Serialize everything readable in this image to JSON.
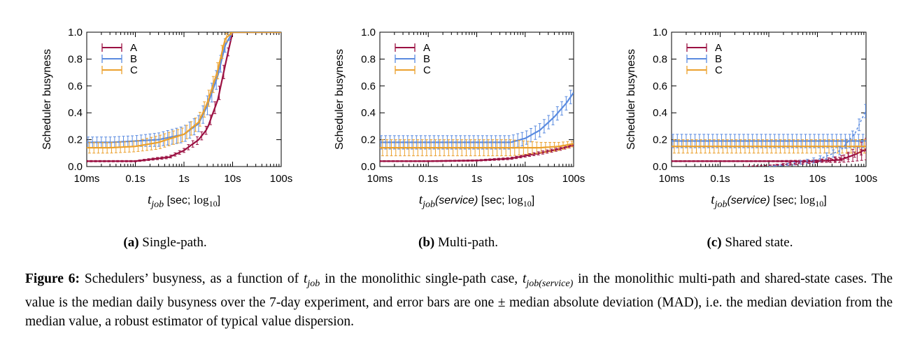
{
  "figure": {
    "label": "Figure 6:",
    "caption_parts": [
      "Schedulers’ busyness, as a function of ",
      "t",
      "job",
      " in the monolithic single-path case, ",
      "t",
      "job(service)",
      " in the monolithic multi-path and shared-state cases. The value is the median daily busyness over the 7-day experiment, and error bars are one ± median absolute deviation (MAD), i.e. the median deviation from the median value, a robust estimator of typical value dispersion."
    ]
  },
  "subcaptions": [
    {
      "tag": "(a)",
      "text": "Single-path."
    },
    {
      "tag": "(b)",
      "text": "Multi-path."
    },
    {
      "tag": "(c)",
      "text": "Shared state."
    }
  ],
  "colors": {
    "A": "#9b1042",
    "B": "#5a8be0",
    "C": "#eba12e"
  },
  "chart_data": [
    {
      "type": "line",
      "ylabel": "Scheduler busyness",
      "xlabel_parts": {
        "t": "t",
        "sub": "job",
        "suffix": "",
        "unit": " [sec; ",
        "log": "log",
        "logsub": "10",
        "close": "]"
      },
      "x_scale": "log",
      "xlim": [
        0.01,
        100
      ],
      "ylim": [
        0,
        1
      ],
      "x_ticks": [
        {
          "v": 0.01,
          "label": "10ms"
        },
        {
          "v": 0.1,
          "label": "0.1s"
        },
        {
          "v": 1,
          "label": "1s"
        },
        {
          "v": 10,
          "label": "10s"
        },
        {
          "v": 100,
          "label": "100s"
        }
      ],
      "y_ticks": [
        {
          "v": 0,
          "label": "0.0"
        },
        {
          "v": 0.2,
          "label": "0.2"
        },
        {
          "v": 0.4,
          "label": "0.4"
        },
        {
          "v": 0.6,
          "label": "0.6"
        },
        {
          "v": 0.8,
          "label": "0.8"
        },
        {
          "v": 1,
          "label": "1.0"
        }
      ],
      "legend": "top-left",
      "series": [
        {
          "name": "A",
          "x": [
            0.01,
            0.1,
            0.5,
            1,
            2,
            3,
            5,
            7,
            10,
            20,
            100
          ],
          "y": [
            0.04,
            0.04,
            0.07,
            0.12,
            0.2,
            0.28,
            0.5,
            0.75,
            1.0,
            1.0,
            1.0
          ],
          "err": [
            0.005,
            0.005,
            0.01,
            0.015,
            0.03,
            0.03,
            0.05,
            0.05,
            0.0,
            0.0,
            0.0
          ]
        },
        {
          "name": "B",
          "x": [
            0.01,
            0.03,
            0.1,
            0.3,
            1,
            2,
            3,
            5,
            7,
            10,
            100
          ],
          "y": [
            0.18,
            0.18,
            0.19,
            0.2,
            0.24,
            0.32,
            0.45,
            0.68,
            0.9,
            1.0,
            1.0
          ],
          "err": [
            0.04,
            0.04,
            0.04,
            0.05,
            0.06,
            0.06,
            0.07,
            0.07,
            0.05,
            0.0,
            0.0
          ]
        },
        {
          "name": "C",
          "x": [
            0.01,
            0.03,
            0.1,
            0.3,
            1,
            2,
            3,
            5,
            7,
            10,
            100
          ],
          "y": [
            0.14,
            0.14,
            0.15,
            0.18,
            0.24,
            0.33,
            0.47,
            0.72,
            0.95,
            1.0,
            1.0
          ],
          "err": [
            0.04,
            0.04,
            0.04,
            0.05,
            0.05,
            0.05,
            0.06,
            0.06,
            0.04,
            0.0,
            0.0
          ]
        }
      ]
    },
    {
      "type": "line",
      "ylabel": "Scheduler busyness",
      "xlabel_parts": {
        "t": "t",
        "sub": "job",
        "suffix": "(service)",
        "unit": " [sec; ",
        "log": "log",
        "logsub": "10",
        "close": "]"
      },
      "x_scale": "log",
      "xlim": [
        0.01,
        100
      ],
      "ylim": [
        0,
        1
      ],
      "x_ticks": [
        {
          "v": 0.01,
          "label": "10ms"
        },
        {
          "v": 0.1,
          "label": "0.1s"
        },
        {
          "v": 1,
          "label": "1s"
        },
        {
          "v": 10,
          "label": "10s"
        },
        {
          "v": 100,
          "label": "100s"
        }
      ],
      "y_ticks": [
        {
          "v": 0,
          "label": "0.0"
        },
        {
          "v": 0.2,
          "label": "0.2"
        },
        {
          "v": 0.4,
          "label": "0.4"
        },
        {
          "v": 0.6,
          "label": "0.6"
        },
        {
          "v": 0.8,
          "label": "0.8"
        },
        {
          "v": 1,
          "label": "1.0"
        }
      ],
      "legend": "top-left",
      "series": [
        {
          "name": "A",
          "x": [
            0.01,
            0.1,
            1,
            5,
            10,
            20,
            50,
            100
          ],
          "y": [
            0.04,
            0.04,
            0.045,
            0.06,
            0.08,
            0.1,
            0.13,
            0.16
          ],
          "err": [
            0.004,
            0.004,
            0.005,
            0.008,
            0.01,
            0.012,
            0.012,
            0.012
          ]
        },
        {
          "name": "B",
          "x": [
            0.01,
            0.1,
            1,
            5,
            10,
            20,
            40,
            70,
            100
          ],
          "y": [
            0.18,
            0.18,
            0.18,
            0.18,
            0.21,
            0.27,
            0.37,
            0.47,
            0.55
          ],
          "err": [
            0.05,
            0.05,
            0.05,
            0.05,
            0.05,
            0.05,
            0.05,
            0.05,
            0.05
          ]
        },
        {
          "name": "C",
          "x": [
            0.01,
            0.1,
            1,
            5,
            10,
            20,
            50,
            100
          ],
          "y": [
            0.14,
            0.14,
            0.14,
            0.14,
            0.14,
            0.14,
            0.15,
            0.17
          ],
          "err": [
            0.06,
            0.06,
            0.06,
            0.06,
            0.05,
            0.04,
            0.03,
            0.02
          ]
        }
      ]
    },
    {
      "type": "line",
      "ylabel": "Scheduler busyness",
      "xlabel_parts": {
        "t": "t",
        "sub": "job",
        "suffix": "(service)",
        "unit": " [sec; ",
        "log": "log",
        "logsub": "10",
        "close": "]"
      },
      "x_scale": "log",
      "xlim": [
        0.01,
        100
      ],
      "ylim": [
        0,
        1
      ],
      "x_ticks": [
        {
          "v": 0.01,
          "label": "10ms"
        },
        {
          "v": 0.1,
          "label": "0.1s"
        },
        {
          "v": 1,
          "label": "1s"
        },
        {
          "v": 10,
          "label": "10s"
        },
        {
          "v": 100,
          "label": "100s"
        }
      ],
      "y_ticks": [
        {
          "v": 0,
          "label": "0.0"
        },
        {
          "v": 0.2,
          "label": "0.2"
        },
        {
          "v": 0.4,
          "label": "0.4"
        },
        {
          "v": 0.6,
          "label": "0.6"
        },
        {
          "v": 0.8,
          "label": "0.8"
        },
        {
          "v": 1,
          "label": "1.0"
        }
      ],
      "legend": "top-left",
      "series": [
        {
          "name": "A",
          "x": [
            0.01,
            0.1,
            1,
            10,
            30,
            60,
            100
          ],
          "y": [
            0.04,
            0.04,
            0.04,
            0.04,
            0.05,
            0.09,
            0.13
          ],
          "err": [
            0.004,
            0.004,
            0.004,
            0.008,
            0.02,
            0.05,
            0.08
          ]
        },
        {
          "name": "B",
          "x": [
            0.01,
            0.1,
            1,
            10,
            30,
            60,
            100
          ],
          "y": [
            0.19,
            0.19,
            0.19,
            0.19,
            0.19,
            0.19,
            0.19
          ],
          "err": [
            0.05,
            0.05,
            0.05,
            0.05,
            0.05,
            0.05,
            0.05
          ]
        },
        {
          "name": "C",
          "x": [
            0.01,
            0.1,
            1,
            10,
            30,
            60,
            100
          ],
          "y": [
            0.15,
            0.15,
            0.15,
            0.15,
            0.15,
            0.15,
            0.15
          ],
          "err": [
            0.05,
            0.05,
            0.05,
            0.05,
            0.05,
            0.05,
            0.05
          ]
        },
        {
          "name": "",
          "x": [
            1,
            3,
            10,
            30,
            60,
            100
          ],
          "y": [
            0.0,
            0.02,
            0.05,
            0.12,
            0.25,
            0.42
          ],
          "err": [
            0.0,
            0.01,
            0.02,
            0.03,
            0.04,
            0.05
          ],
          "dashed": true,
          "color_of": "B"
        },
        {
          "name": "",
          "x": [
            0.3,
            1,
            3,
            10,
            30,
            60,
            100
          ],
          "y": [
            0.0,
            0.01,
            0.02,
            0.04,
            0.06,
            0.09,
            0.12
          ],
          "err": [
            0.0,
            0.0,
            0.01,
            0.01,
            0.02,
            0.02,
            0.02
          ],
          "dashed": true,
          "color_of": "A"
        }
      ]
    }
  ]
}
